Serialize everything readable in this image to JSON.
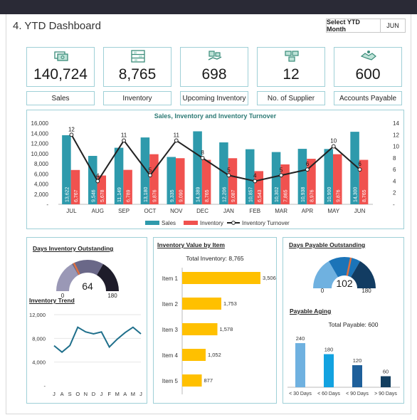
{
  "header": {
    "title": "4. YTD Dashboard",
    "select_label": "Select YTD Month",
    "select_value": "JUN"
  },
  "kpis": [
    {
      "value": "140,724",
      "label": "Sales",
      "icon": "money-icon"
    },
    {
      "value": "8,765",
      "label": "Inventory",
      "icon": "shelves-icon"
    },
    {
      "value": "698",
      "label": "Upcoming Inventory",
      "icon": "delivery-icon"
    },
    {
      "value": "12",
      "label": "No. of Supplier",
      "icon": "supplier-icon"
    },
    {
      "value": "600",
      "label": "Accounts Payable",
      "icon": "handshake-icon"
    }
  ],
  "main_chart": {
    "legend": [
      "Sales",
      "Inventory",
      "Inventory Turnover"
    ]
  },
  "dio": {
    "title": "Days Inventory Outstanding",
    "value": "64",
    "min": "0",
    "max": "180"
  },
  "trend": {
    "title": "Inventory Trend"
  },
  "by_item": {
    "title": "Inventory Value by Item",
    "total": "Total Inventory: 8,765"
  },
  "dpo": {
    "title": "Days Payable Outstanding",
    "value": "102",
    "min": "0",
    "max": "180"
  },
  "aging": {
    "title": "Payable Aging",
    "total": "Total Payable: 600"
  },
  "chart_data": [
    {
      "type": "bar",
      "title": "Sales, Inventory and Inventory Turnover",
      "categories": [
        "JUL",
        "AUG",
        "SEP",
        "OCT",
        "NOV",
        "DEC",
        "JAN",
        "FEB",
        "MAR",
        "APR",
        "MAY",
        "JUN"
      ],
      "series": [
        {
          "name": "Sales",
          "values": [
            13622,
            9546,
            11149,
            13180,
            9335,
            14389,
            12206,
            10857,
            10302,
            10938,
            10900,
            14300
          ],
          "color": "#2e9aac"
        },
        {
          "name": "Inventory",
          "values": [
            6767,
            5678,
            6789,
            9876,
            9090,
            8765,
            9087,
            6543,
            7865,
            8976,
            9876,
            8765
          ],
          "color": "#f0524f"
        },
        {
          "name": "Inventory Turnover",
          "values": [
            12,
            4,
            11,
            5,
            11,
            8,
            5,
            4,
            5,
            6,
            10,
            6
          ],
          "axis": "right",
          "color": "#222222"
        }
      ],
      "ylim": [
        0,
        16000
      ],
      "y2lim": [
        0,
        14
      ],
      "yticks": [
        "-",
        "2,000",
        "4,000",
        "6,000",
        "8,000",
        "10,000",
        "12,000",
        "14,000",
        "16,000"
      ],
      "y2ticks": [
        "-",
        "2",
        "4",
        "6",
        "8",
        "10",
        "12",
        "14"
      ],
      "legend": "bottom"
    },
    {
      "type": "gauge",
      "title": "Days Inventory Outstanding",
      "value": 64,
      "range": [
        0,
        180
      ]
    },
    {
      "type": "line",
      "title": "Inventory Trend",
      "categories": [
        "J",
        "A",
        "S",
        "O",
        "N",
        "D",
        "J",
        "F",
        "M",
        "A",
        "M",
        "J"
      ],
      "values": [
        6767,
        5678,
        6789,
        9876,
        9090,
        8765,
        9087,
        6543,
        7865,
        8976,
        9876,
        8765
      ],
      "ylim": [
        0,
        12000
      ],
      "yticks": [
        "-",
        "4,000",
        "8,000",
        "12,000"
      ]
    },
    {
      "type": "bar",
      "title": "Inventory Value by Item",
      "categories": [
        "Item 1",
        "Item 2",
        "Item 3",
        "Item 4",
        "Item 5"
      ],
      "values": [
        3506,
        1753,
        1578,
        1052,
        877
      ],
      "labels": [
        "3,506",
        "1,753",
        "1,578",
        "1,052",
        "877"
      ],
      "color": "#ffc000"
    },
    {
      "type": "gauge",
      "title": "Days Payable Outstanding",
      "value": 102,
      "range": [
        0,
        180
      ]
    },
    {
      "type": "bar",
      "title": "Payable Aging",
      "categories": [
        "< 30 Days",
        "< 60 Days",
        "< 90 Days",
        "> 90 Days"
      ],
      "values": [
        240,
        180,
        120,
        60
      ],
      "colors": [
        "#6fb1e0",
        "#12a2e0",
        "#1e5f9a",
        "#133e5f"
      ]
    }
  ]
}
